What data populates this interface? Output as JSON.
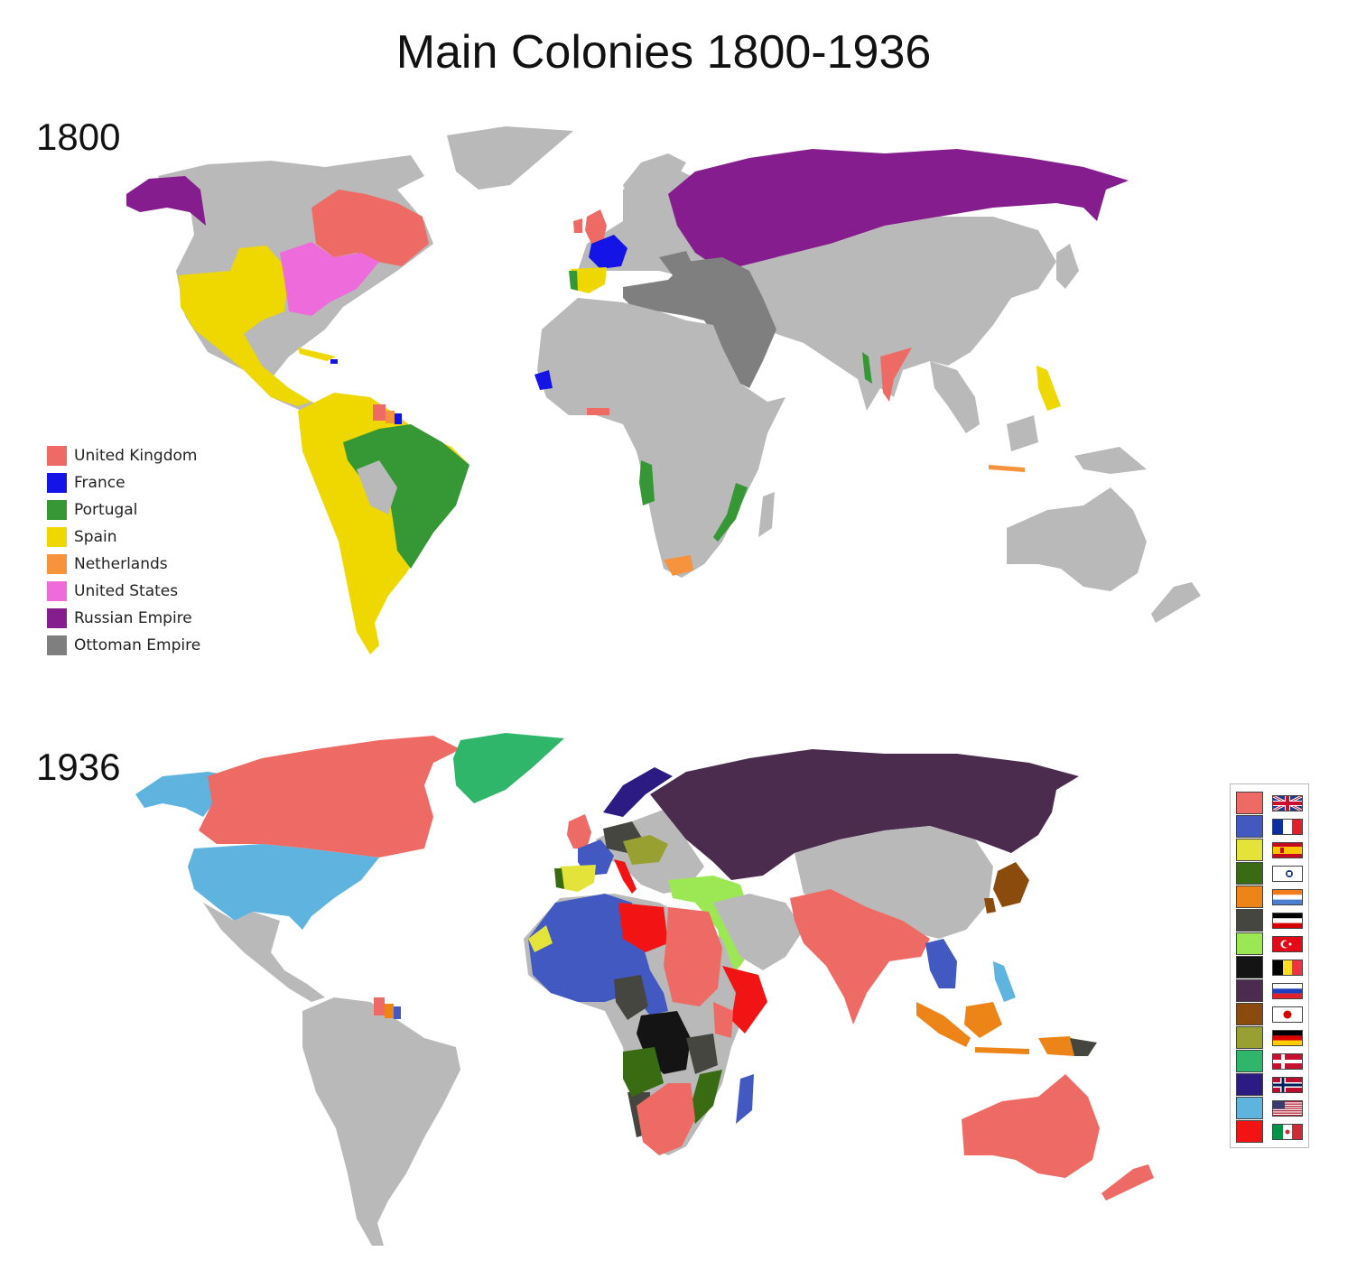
{
  "title": "Main Colonies 1800-1936",
  "maps": {
    "top_year": "1800",
    "bottom_year": "1936"
  },
  "colors": {
    "land": "#b9b9b9",
    "uk": "#ee6b65",
    "france_1800": "#1414e6",
    "portugal_1800": "#359835",
    "spain_1800": "#eed800",
    "netherlands_1800": "#f7923d",
    "us_1800": "#ee6bdc",
    "russia_1800": "#851d8f",
    "ottoman_1800": "#7f7f7f"
  },
  "legend_1800": [
    {
      "label": "United Kingdom",
      "color": "#ee6b65"
    },
    {
      "label": "France",
      "color": "#1414e6"
    },
    {
      "label": "Portugal",
      "color": "#359835"
    },
    {
      "label": "Spain",
      "color": "#eed800"
    },
    {
      "label": "Netherlands",
      "color": "#f7923d"
    },
    {
      "label": "United States",
      "color": "#ee6bdc"
    },
    {
      "label": "Russian Empire",
      "color": "#851d8f"
    },
    {
      "label": "Ottoman Empire",
      "color": "#7f7f7f"
    }
  ],
  "legend_1936": [
    {
      "flag": "united-kingdom-flag-icon",
      "color": "#ee6b65"
    },
    {
      "flag": "france-flag-icon",
      "color": "#4159c1"
    },
    {
      "flag": "spain-flag-icon",
      "color": "#e3e33a"
    },
    {
      "flag": "portugal-flag-icon",
      "color": "#386b12"
    },
    {
      "flag": "netherlands-flag-icon",
      "color": "#ec8418"
    },
    {
      "flag": "germany-flag-icon",
      "color": "#464640"
    },
    {
      "flag": "turkey-flag-icon",
      "color": "#9ce854"
    },
    {
      "flag": "belgium-flag-icon",
      "color": "#141414"
    },
    {
      "flag": "russia-flag-icon",
      "color": "#4b2b4e"
    },
    {
      "flag": "japan-flag-icon",
      "color": "#8a4b0d"
    },
    {
      "flag": "germany-flag-icon-2",
      "color": "#98a031"
    },
    {
      "flag": "denmark-flag-icon",
      "color": "#2fb66a"
    },
    {
      "flag": "norway-flag-icon",
      "color": "#2c1b83"
    },
    {
      "flag": "united-states-flag-icon",
      "color": "#5eb3df"
    },
    {
      "flag": "italy-flag-icon",
      "color": "#f21414"
    }
  ]
}
